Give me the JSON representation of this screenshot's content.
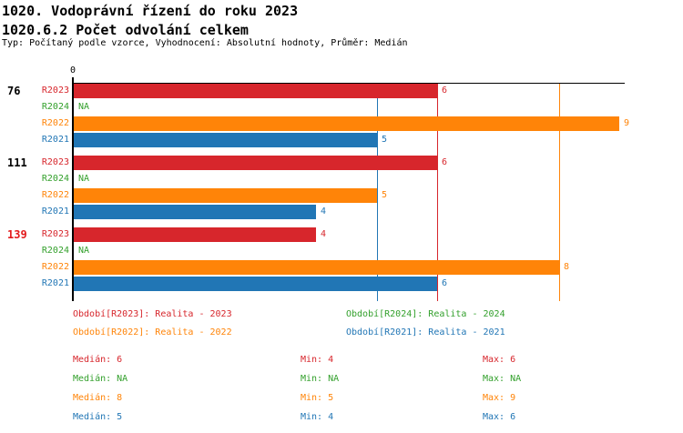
{
  "header": {
    "title": "1020. Vodoprávní řízení do roku 2023",
    "subtitle": "1020.6.2 Počet odvolání celkem",
    "meta": "Typ: Počítaný podle vzorce, Vyhodnocení: Absolutní hodnoty, Průměr: Medián"
  },
  "colors": {
    "R2023": "#d7262c",
    "R2024": "#33a02c",
    "R2022": "#ff8408",
    "R2021": "#2176b5",
    "axis": "#000000",
    "highlight_group_label": "#e31a1c",
    "normal_group_label": "#000000"
  },
  "chart_data": {
    "type": "bar",
    "orientation": "horizontal",
    "axis_origin_label": "0",
    "xlim": [
      0,
      9.08
    ],
    "grid": false,
    "series_order": [
      "R2023",
      "R2024",
      "R2022",
      "R2021"
    ],
    "groups": [
      {
        "label": "76",
        "label_color_key": "normal_group_label",
        "bars": [
          {
            "series": "R2023",
            "value": 6,
            "display": "6"
          },
          {
            "series": "R2024",
            "value": null,
            "display": "NA"
          },
          {
            "series": "R2022",
            "value": 9,
            "display": "9"
          },
          {
            "series": "R2021",
            "value": 5,
            "display": "5"
          }
        ]
      },
      {
        "label": "111",
        "label_color_key": "normal_group_label",
        "bars": [
          {
            "series": "R2023",
            "value": 6,
            "display": "6"
          },
          {
            "series": "R2024",
            "value": null,
            "display": "NA"
          },
          {
            "series": "R2022",
            "value": 5,
            "display": "5"
          },
          {
            "series": "R2021",
            "value": 4,
            "display": "4"
          }
        ]
      },
      {
        "label": "139",
        "label_color_key": "highlight_group_label",
        "bars": [
          {
            "series": "R2023",
            "value": 4,
            "display": "4"
          },
          {
            "series": "R2024",
            "value": null,
            "display": "NA"
          },
          {
            "series": "R2022",
            "value": 8,
            "display": "8"
          },
          {
            "series": "R2021",
            "value": 6,
            "display": "6"
          }
        ]
      }
    ],
    "reference_lines": [
      {
        "series": "R2021",
        "value": 5,
        "meaning": "Medián R2021"
      },
      {
        "series": "R2023",
        "value": 6,
        "meaning": "Medián R2023"
      },
      {
        "series": "R2022",
        "value": 8,
        "meaning": "Medián R2022"
      }
    ]
  },
  "legend": {
    "items": [
      {
        "label": "Období[R2023]: Realita - 2023",
        "series": "R2023"
      },
      {
        "label": "Období[R2024]: Realita - 2024",
        "series": "R2024"
      },
      {
        "label": "Období[R2022]: Realita - 2022",
        "series": "R2022"
      },
      {
        "label": "Období[R2021]: Realita - 2021",
        "series": "R2021"
      }
    ]
  },
  "stats": {
    "rows": [
      {
        "series": "R2023",
        "median": "Medián: 6",
        "min": "Min: 4",
        "max": "Max: 6"
      },
      {
        "series": "R2024",
        "median": "Medián: NA",
        "min": "Min: NA",
        "max": "Max: NA"
      },
      {
        "series": "R2022",
        "median": "Medián: 8",
        "min": "Min: 5",
        "max": "Max: 9"
      },
      {
        "series": "R2021",
        "median": "Medián: 5",
        "min": "Min: 4",
        "max": "Max: 6"
      }
    ]
  }
}
